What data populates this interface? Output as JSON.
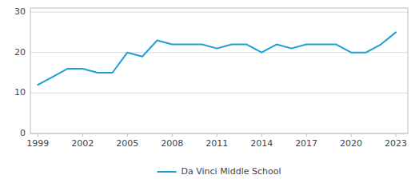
{
  "chart_data": {
    "type": "line",
    "x": [
      1999,
      2000,
      2001,
      2002,
      2003,
      2004,
      2005,
      2006,
      2007,
      2008,
      2009,
      2010,
      2011,
      2012,
      2013,
      2014,
      2015,
      2016,
      2017,
      2018,
      2019,
      2020,
      2021,
      2022,
      2023
    ],
    "series": [
      {
        "name": "Da Vinci Middle School",
        "color": "#1f9fd5",
        "values": [
          12,
          14,
          16,
          16,
          15,
          15,
          20,
          19,
          23,
          22,
          22,
          22,
          21,
          22,
          22,
          20,
          22,
          21,
          22,
          22,
          22,
          20,
          20,
          22,
          25
        ]
      }
    ],
    "xlim": [
      1998.5,
      2023.8
    ],
    "ylim": [
      0,
      31
    ],
    "xticks": [
      1999,
      2002,
      2005,
      2008,
      2011,
      2014,
      2017,
      2020,
      2023
    ],
    "yticks": [
      0,
      10,
      20,
      30
    ],
    "grid": true,
    "legend": "bottom"
  }
}
